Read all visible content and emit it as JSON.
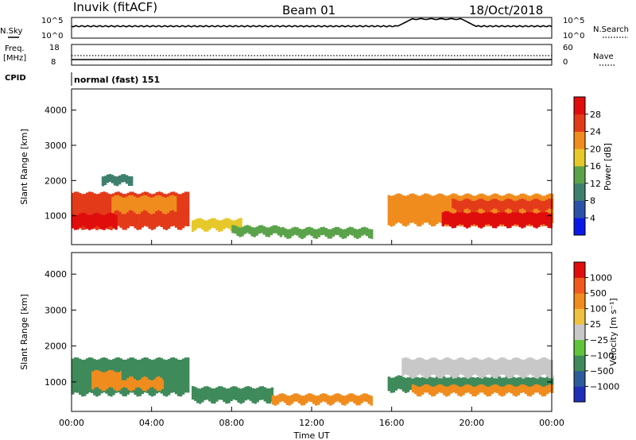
{
  "header": {
    "station": "Inuvik (fitACF)",
    "beam": "Beam 01",
    "date": "18/Oct/2018"
  },
  "top_panels": {
    "nsky_label": "N.Sky",
    "nsky_ticks": [
      "10^5",
      "10^0"
    ],
    "nsearch_label": "N.Search",
    "nsearch_ticks": [
      "10^5",
      "10^0"
    ],
    "freq_label_1": "Freq.",
    "freq_label_2": "[MHz]",
    "freq_ticks": [
      "18",
      "8"
    ],
    "nave_label": "Nave",
    "nave_ticks": [
      "60",
      "0"
    ],
    "cpid_label": "CPID",
    "cpid_value": "normal (fast) 151"
  },
  "chart_data": [
    {
      "type": "heatmap",
      "name": "power",
      "ylabel": "Slant Range [km]",
      "xlabel": "",
      "x_ticks": [
        "00:00",
        "04:00",
        "08:00",
        "12:00",
        "16:00",
        "20:00",
        "00:00"
      ],
      "x_range_hours": [
        0,
        24
      ],
      "y_ticks": [
        1000,
        2000,
        3000,
        4000
      ],
      "y_range_km": [
        180,
        4600
      ],
      "colorbar": {
        "label": "Power [dB]",
        "ticks": [
          "4",
          "8",
          "12",
          "16",
          "20",
          "24",
          "28"
        ],
        "colors": [
          "#0b19e8",
          "#2c52a8",
          "#3f7f6e",
          "#5aa34a",
          "#e6c82a",
          "#f08c1e",
          "#e33a1a",
          "#e00d0d"
        ]
      },
      "bands": [
        {
          "t0": 0.0,
          "t1": 5.8,
          "r0": 650,
          "r1": 1650,
          "level": 6
        },
        {
          "t0": 0.0,
          "t1": 2.2,
          "r0": 650,
          "r1": 1050,
          "level": 7
        },
        {
          "t0": 2.0,
          "t1": 5.2,
          "r0": 1100,
          "r1": 1550,
          "level": 5
        },
        {
          "t0": 1.5,
          "t1": 3.0,
          "r0": 1900,
          "r1": 2150,
          "level": 2
        },
        {
          "t0": 6.0,
          "t1": 8.5,
          "r0": 600,
          "r1": 900,
          "level": 4
        },
        {
          "t0": 8.0,
          "t1": 10.5,
          "r0": 450,
          "r1": 700,
          "level": 3
        },
        {
          "t0": 10.5,
          "t1": 15.0,
          "r0": 400,
          "r1": 650,
          "level": 3
        },
        {
          "t0": 15.8,
          "t1": 24.0,
          "r0": 750,
          "r1": 1600,
          "level": 5
        },
        {
          "t0": 18.5,
          "t1": 24.0,
          "r0": 700,
          "r1": 1100,
          "level": 7
        },
        {
          "t0": 19.0,
          "t1": 24.0,
          "r0": 1150,
          "r1": 1450,
          "level": 6
        }
      ]
    },
    {
      "type": "heatmap",
      "name": "velocity",
      "ylabel": "Slant Range [km]",
      "xlabel": "Time UT",
      "x_ticks": [
        "00:00",
        "04:00",
        "08:00",
        "12:00",
        "16:00",
        "20:00",
        "00:00"
      ],
      "x_range_hours": [
        0,
        24
      ],
      "y_ticks": [
        1000,
        2000,
        3000,
        4000
      ],
      "y_range_km": [
        180,
        4600
      ],
      "colorbar": {
        "label": "Velocity [m s⁻¹]",
        "ticks": [
          "1000",
          "500",
          "100",
          "25",
          "−25",
          "−100",
          "−500",
          "−1000"
        ],
        "colors": [
          "#1f2fb8",
          "#2c5c9a",
          "#3f8a5a",
          "#5fc43c",
          "#c8c8c8",
          "#f0c040",
          "#f08c1e",
          "#f05a1e",
          "#e00d0d"
        ]
      },
      "bands": [
        {
          "t0": 0.0,
          "t1": 5.8,
          "r0": 650,
          "r1": 1650,
          "level": 2
        },
        {
          "t0": 1.0,
          "t1": 4.5,
          "r0": 800,
          "r1": 1300,
          "level": 6
        },
        {
          "t0": 2.5,
          "t1": 5.5,
          "r0": 1100,
          "r1": 1550,
          "level": 2
        },
        {
          "t0": 6.0,
          "t1": 10.0,
          "r0": 450,
          "r1": 850,
          "level": 2
        },
        {
          "t0": 10.0,
          "t1": 15.0,
          "r0": 400,
          "r1": 650,
          "level": 6
        },
        {
          "t0": 15.8,
          "t1": 24.0,
          "r0": 750,
          "r1": 1150,
          "level": 2
        },
        {
          "t0": 16.5,
          "t1": 24.0,
          "r0": 1150,
          "r1": 1650,
          "level": 4
        },
        {
          "t0": 17.0,
          "t1": 24.0,
          "r0": 650,
          "r1": 900,
          "level": 6
        }
      ]
    }
  ]
}
